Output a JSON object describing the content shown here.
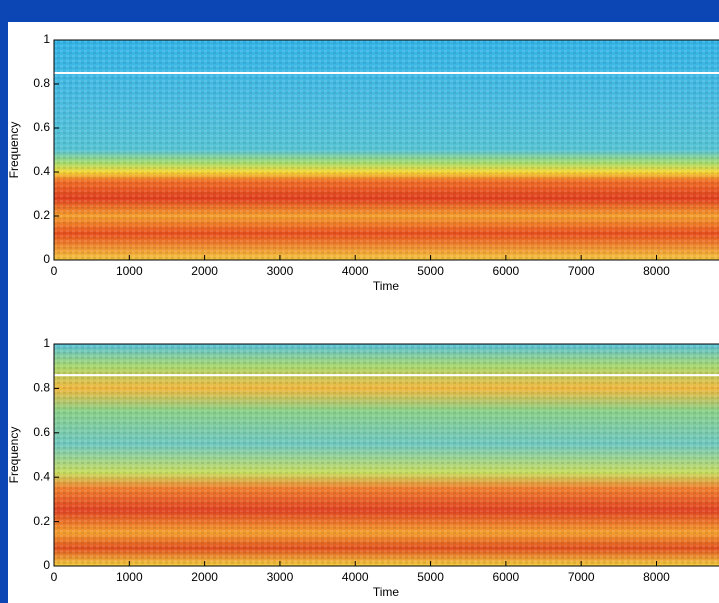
{
  "chart_data": [
    {
      "type": "heatmap",
      "xlabel": "Time",
      "ylabel": "Frequency",
      "xlim": [
        0,
        8830
      ],
      "xticks": [
        0,
        1000,
        2000,
        3000,
        4000,
        5000,
        6000,
        7000,
        8000
      ],
      "ylim": [
        0,
        1
      ],
      "yticks": [
        0,
        0.2,
        0.4,
        0.6,
        0.8,
        1
      ],
      "hline": 0.85
    },
    {
      "type": "heatmap",
      "xlabel": "Time",
      "ylabel": "Frequency",
      "xlim": [
        0,
        8830
      ],
      "xticks": [
        0,
        1000,
        2000,
        3000,
        4000,
        5000,
        6000,
        7000,
        8000
      ],
      "ylim": [
        0,
        1
      ],
      "yticks": [
        0,
        0.2,
        0.4,
        0.6,
        0.8,
        1
      ],
      "hline": 0.86
    }
  ]
}
